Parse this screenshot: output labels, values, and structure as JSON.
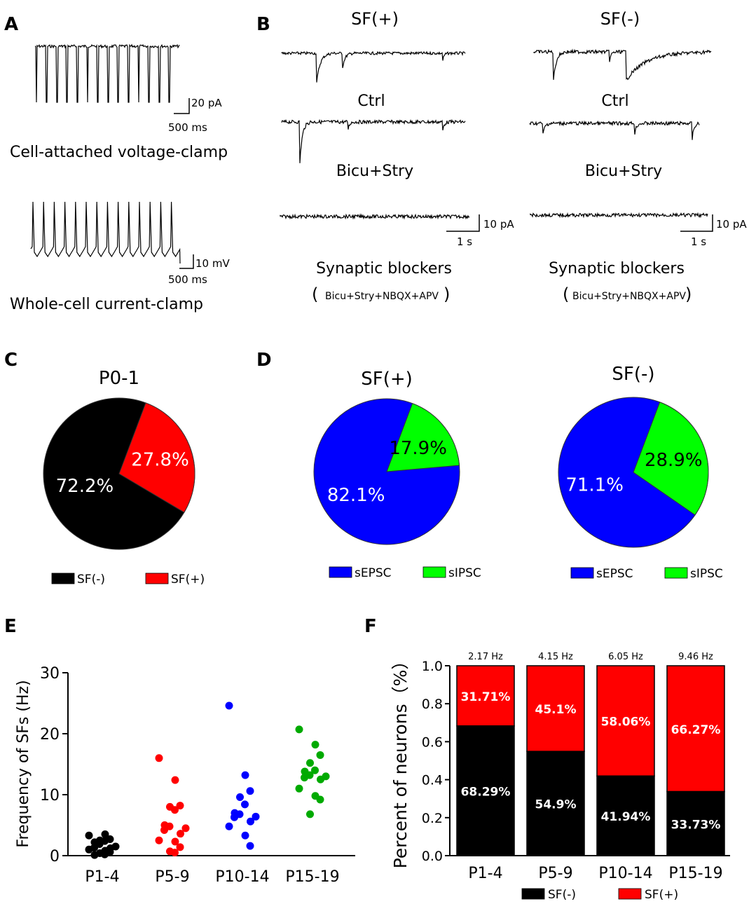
{
  "panels": {
    "A": "A",
    "B": "B",
    "C": "C",
    "D": "D",
    "E": "E",
    "F": "F"
  },
  "panel_a": {
    "top_scale_y": "20 pA",
    "top_scale_x": "500 ms",
    "top_caption": "Cell-attached voltage-clamp",
    "bottom_scale_y": "10 mV",
    "bottom_scale_x": "500 ms",
    "bottom_caption": "Whole-cell current-clamp"
  },
  "panel_b": {
    "columns": [
      {
        "title": "SF(+)",
        "ctrl": "Ctrl",
        "bicu": "Bicu+Stry",
        "blockers": "Synaptic blockers",
        "blockers_detail": "Bicu+Stry+NBQX+APV",
        "open_paren": "(",
        "close_paren": ")",
        "scale_y": "10 pA",
        "scale_x": "1 s"
      },
      {
        "title": "SF(-)",
        "ctrl": "Ctrl",
        "bicu": "Bicu+Stry",
        "blockers": "Synaptic blockers",
        "blockers_detail": "Bicu+Stry+NBQX+APV",
        "open_paren": "(",
        "close_paren": ")",
        "scale_y": "10 pA",
        "scale_x": "1 s"
      }
    ]
  },
  "chart_data": [
    {
      "type": "pie",
      "panel": "C",
      "title": "P0-1",
      "labels": [
        "SF(-)",
        "SF(+)"
      ],
      "values": [
        72.2,
        27.8
      ],
      "value_labels": [
        "72.2%",
        "27.8%"
      ],
      "colors": [
        "#000000",
        "#ff0000"
      ],
      "label_colors": [
        "#ffffff",
        "#ffffff"
      ],
      "legend": [
        "SF(-)",
        "SF(+)"
      ]
    },
    {
      "type": "pie",
      "panel": "D",
      "title": "SF(+)",
      "labels": [
        "sEPSC",
        "sIPSC"
      ],
      "values": [
        82.1,
        17.9
      ],
      "value_labels": [
        "82.1%",
        "17.9%"
      ],
      "colors": [
        "#0000ff",
        "#00ff00"
      ],
      "label_colors": [
        "#ffffff",
        "#000000"
      ],
      "legend": [
        "sEPSC",
        "sIPSC"
      ]
    },
    {
      "type": "pie",
      "panel": "D",
      "title": "SF(-)",
      "labels": [
        "sEPSC",
        "sIPSC"
      ],
      "values": [
        71.1,
        28.9
      ],
      "value_labels": [
        "71.1%",
        "28.9%"
      ],
      "colors": [
        "#0000ff",
        "#00ff00"
      ],
      "label_colors": [
        "#ffffff",
        "#000000"
      ],
      "legend": [
        "sEPSC",
        "sIPSC"
      ]
    },
    {
      "type": "scatter",
      "panel": "E",
      "ylabel": "Frequency of SFs (Hz)",
      "xlabel": "",
      "ylim": [
        0,
        30
      ],
      "yticks": [
        "0",
        "10",
        "20",
        "30"
      ],
      "categories": [
        "P1-4",
        "P5-9",
        "P10-14",
        "P15-19"
      ],
      "series": [
        {
          "name": "P1-4",
          "color": "#000000",
          "values": [
            3.3,
            3.5,
            2.7,
            2.5,
            2.4,
            2.2,
            1.9,
            1.5,
            1.3,
            1.2,
            1.0,
            0.8,
            0.6,
            0.4,
            0.2,
            0.1
          ]
        },
        {
          "name": "P5-9",
          "color": "#ff0000",
          "values": [
            16.0,
            12.4,
            8.2,
            8.0,
            7.5,
            5.0,
            4.8,
            4.5,
            4.2,
            3.6,
            2.5,
            2.3,
            1.4,
            0.7,
            0.5
          ]
        },
        {
          "name": "P10-14",
          "color": "#0000ff",
          "values": [
            24.6,
            13.2,
            10.6,
            9.6,
            8.4,
            7.0,
            6.8,
            6.4,
            6.3,
            5.6,
            4.8,
            3.3,
            1.6
          ]
        },
        {
          "name": "P15-19",
          "color": "#00aa00",
          "values": [
            20.7,
            18.2,
            16.5,
            15.2,
            14.0,
            13.8,
            13.2,
            13.0,
            12.8,
            12.5,
            11.0,
            9.8,
            9.2,
            6.8
          ]
        }
      ]
    },
    {
      "type": "bar",
      "stacked": true,
      "panel": "F",
      "ylabel": "Percent of neurons（%）",
      "ylim": [
        0,
        1.0
      ],
      "yticks": [
        "0.0",
        "0.2",
        "0.4",
        "0.6",
        "0.8",
        "1.0"
      ],
      "categories": [
        "P1-4",
        "P5-9",
        "P10-14",
        "P15-19"
      ],
      "top_labels": [
        "2.17 Hz",
        "4.15 Hz",
        "6.05 Hz",
        "9.46 Hz"
      ],
      "series": [
        {
          "name": "SF(-)",
          "color": "#000000",
          "values": [
            0.6829,
            0.549,
            0.4194,
            0.3373
          ],
          "labels": [
            "68.29%",
            "54.9%",
            "41.94%",
            "33.73%"
          ]
        },
        {
          "name": "SF(+)",
          "color": "#ff0000",
          "values": [
            0.3171,
            0.451,
            0.5806,
            0.6627
          ],
          "labels": [
            "31.71%",
            "45.1%",
            "58.06%",
            "66.27%"
          ]
        }
      ],
      "legend": [
        "SF(-)",
        "SF(+)"
      ]
    }
  ]
}
